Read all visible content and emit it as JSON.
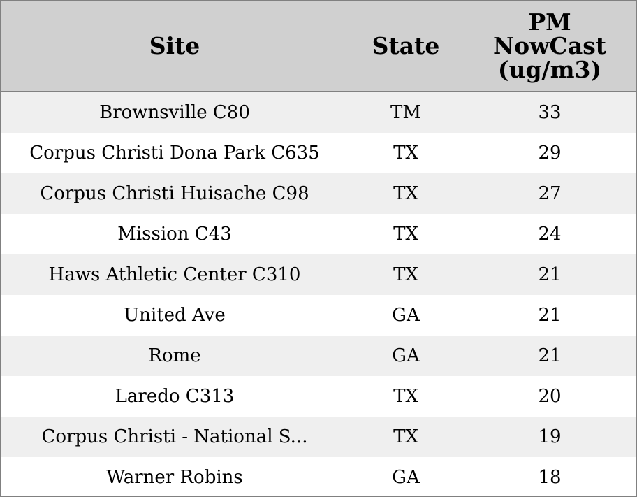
{
  "chart_data": {
    "type": "table",
    "columns": [
      "Site",
      "State",
      "PM NowCast (ug/m3)"
    ],
    "header_lines": {
      "site": [
        "Site"
      ],
      "state": [
        "State"
      ],
      "pm": [
        "PM",
        "NowCast",
        "(ug/m3)"
      ]
    },
    "rows": [
      {
        "site": "Brownsville C80",
        "state": "TM",
        "pm": 33
      },
      {
        "site": "Corpus Christi Dona Park C635",
        "state": "TX",
        "pm": 29
      },
      {
        "site": "Corpus Christi Huisache C98",
        "state": "TX",
        "pm": 27
      },
      {
        "site": "Mission C43",
        "state": "TX",
        "pm": 24
      },
      {
        "site": "Haws Athletic Center C310",
        "state": "TX",
        "pm": 21
      },
      {
        "site": "United Ave",
        "state": "GA",
        "pm": 21
      },
      {
        "site": "Rome",
        "state": "GA",
        "pm": 21
      },
      {
        "site": "Laredo C313",
        "state": "TX",
        "pm": 20
      },
      {
        "site": "Corpus Christi - National S...",
        "state": "TX",
        "pm": 19
      },
      {
        "site": "Warner Robins",
        "state": "GA",
        "pm": 18
      }
    ]
  },
  "colors": {
    "header_background": "#d0d0d0",
    "row_stripe": "#efefef",
    "row_plain": "#ffffff",
    "border": "#808080"
  }
}
